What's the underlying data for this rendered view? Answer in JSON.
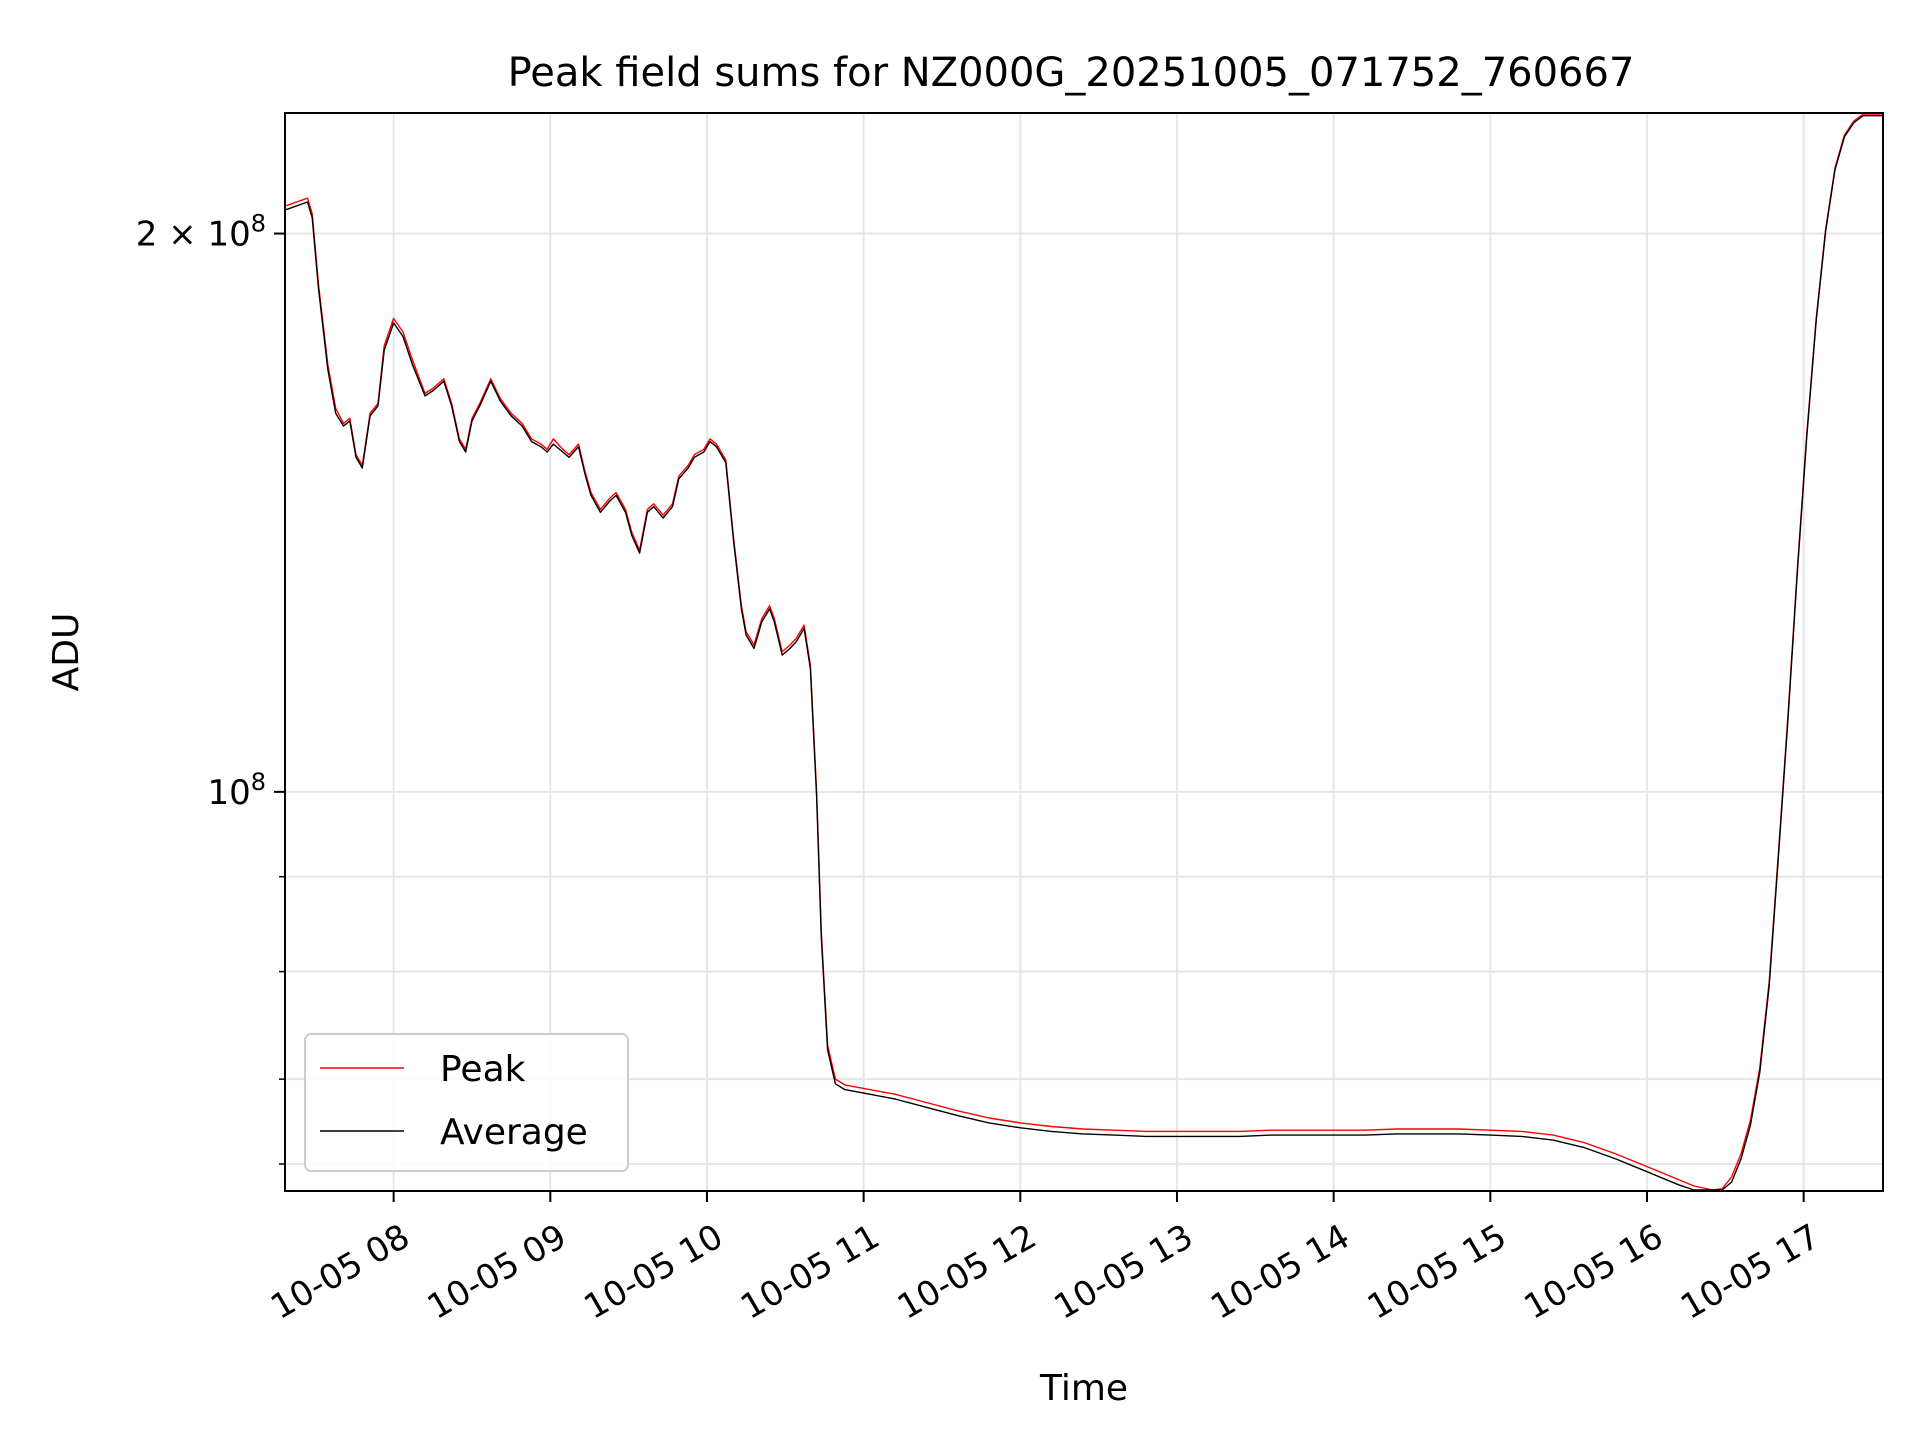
{
  "chart_data": {
    "type": "line",
    "title": "Peak field sums for NZ000G_20251005_071752_760667",
    "xlabel": "Time",
    "ylabel": "ADU",
    "yscale": "log",
    "grid": true,
    "legend_position": "lower-left",
    "xlim": [
      7.313,
      17.5
    ],
    "ylim": [
      61000000,
      232000000
    ],
    "x_ticks": [
      {
        "value": 8,
        "label": "10-05 08"
      },
      {
        "value": 9,
        "label": "10-05 09"
      },
      {
        "value": 10,
        "label": "10-05 10"
      },
      {
        "value": 11,
        "label": "10-05 11"
      },
      {
        "value": 12,
        "label": "10-05 12"
      },
      {
        "value": 13,
        "label": "10-05 13"
      },
      {
        "value": 14,
        "label": "10-05 14"
      },
      {
        "value": 15,
        "label": "10-05 15"
      },
      {
        "value": 16,
        "label": "10-05 16"
      },
      {
        "value": 17,
        "label": "10-05 17"
      }
    ],
    "y_major_ticks": [
      {
        "value": 100000000,
        "mantissa": "",
        "exponent": "8"
      },
      {
        "value": 200000000,
        "mantissa": "2",
        "exponent": "8"
      }
    ],
    "y_minor_ticks": [
      63000000,
      70000000,
      80000000,
      90000000
    ],
    "series": [
      {
        "name": "Peak",
        "color": "#ff0000",
        "x": [
          7.313,
          7.45,
          7.48,
          7.52,
          7.58,
          7.63,
          7.68,
          7.72,
          7.76,
          7.8,
          7.85,
          7.9,
          7.94,
          8.0,
          8.06,
          8.12,
          8.2,
          8.25,
          8.32,
          8.37,
          8.42,
          8.46,
          8.5,
          8.55,
          8.62,
          8.68,
          8.75,
          8.82,
          8.88,
          8.94,
          8.98,
          9.02,
          9.08,
          9.12,
          9.18,
          9.22,
          9.26,
          9.32,
          9.38,
          9.42,
          9.48,
          9.52,
          9.57,
          9.62,
          9.66,
          9.72,
          9.78,
          9.82,
          9.88,
          9.92,
          9.98,
          10.02,
          10.06,
          10.12,
          10.17,
          10.22,
          10.25,
          10.3,
          10.35,
          10.4,
          10.43,
          10.48,
          10.53,
          10.57,
          10.62,
          10.66,
          10.7,
          10.73,
          10.77,
          10.82,
          10.88,
          11.0,
          11.2,
          11.4,
          11.6,
          11.8,
          12.0,
          12.2,
          12.4,
          12.6,
          12.8,
          13.0,
          13.2,
          13.4,
          13.6,
          13.8,
          14.0,
          14.2,
          14.4,
          14.6,
          14.8,
          15.0,
          15.2,
          15.4,
          15.6,
          15.8,
          16.0,
          16.2,
          16.3,
          16.42,
          16.48,
          16.54,
          16.6,
          16.66,
          16.72,
          16.78,
          16.84,
          16.9,
          16.96,
          17.02,
          17.08,
          17.14,
          17.2,
          17.26,
          17.32,
          17.38,
          17.44,
          17.5
        ],
        "y": [
          207000000,
          209000000,
          205000000,
          188000000,
          170000000,
          161000000,
          158000000,
          159000000,
          152000000,
          150000000,
          160000000,
          162000000,
          174000000,
          180000000,
          177000000,
          171000000,
          164000000,
          165000000,
          167000000,
          162000000,
          155000000,
          153000000,
          159000000,
          162000000,
          167000000,
          163000000,
          160000000,
          158000000,
          155000000,
          154000000,
          153000000,
          155000000,
          153000000,
          152000000,
          154000000,
          149000000,
          145000000,
          142000000,
          144000000,
          145000000,
          142000000,
          138000000,
          135000000,
          142000000,
          143000000,
          141000000,
          143000000,
          148000000,
          150000000,
          152000000,
          153000000,
          155000000,
          154000000,
          151000000,
          137000000,
          126000000,
          122000000,
          120000000,
          124000000,
          126000000,
          124000000,
          119000000,
          120000000,
          121000000,
          123000000,
          117000000,
          100000000,
          84000000,
          73000000,
          70000000,
          69500000,
          69200000,
          68700000,
          68000000,
          67300000,
          66700000,
          66300000,
          66000000,
          65800000,
          65700000,
          65600000,
          65600000,
          65600000,
          65600000,
          65700000,
          65700000,
          65700000,
          65700000,
          65800000,
          65800000,
          65800000,
          65700000,
          65600000,
          65300000,
          64700000,
          63800000,
          62800000,
          61800000,
          61300000,
          61000000,
          61100000,
          62000000,
          63800000,
          66500000,
          71000000,
          79000000,
          93000000,
          110000000,
          132000000,
          156000000,
          180000000,
          201000000,
          217000000,
          226000000,
          230000000,
          232000000,
          232000000,
          232000000
        ]
      },
      {
        "name": "Average",
        "color": "#000000",
        "x": [
          7.313,
          7.45,
          7.48,
          7.52,
          7.58,
          7.63,
          7.68,
          7.72,
          7.76,
          7.8,
          7.85,
          7.9,
          7.94,
          8.0,
          8.06,
          8.12,
          8.2,
          8.25,
          8.32,
          8.37,
          8.42,
          8.46,
          8.5,
          8.55,
          8.62,
          8.68,
          8.75,
          8.82,
          8.88,
          8.94,
          8.98,
          9.02,
          9.08,
          9.12,
          9.18,
          9.22,
          9.26,
          9.32,
          9.38,
          9.42,
          9.48,
          9.52,
          9.57,
          9.62,
          9.66,
          9.72,
          9.78,
          9.82,
          9.88,
          9.92,
          9.98,
          10.02,
          10.06,
          10.12,
          10.17,
          10.22,
          10.25,
          10.3,
          10.35,
          10.4,
          10.43,
          10.48,
          10.53,
          10.57,
          10.62,
          10.66,
          10.7,
          10.73,
          10.77,
          10.82,
          10.88,
          11.0,
          11.2,
          11.4,
          11.6,
          11.8,
          12.0,
          12.2,
          12.4,
          12.6,
          12.8,
          13.0,
          13.2,
          13.4,
          13.6,
          13.8,
          14.0,
          14.2,
          14.4,
          14.6,
          14.8,
          15.0,
          15.2,
          15.4,
          15.6,
          15.8,
          16.0,
          16.2,
          16.3,
          16.42,
          16.48,
          16.54,
          16.6,
          16.66,
          16.72,
          16.78,
          16.84,
          16.9,
          16.96,
          17.02,
          17.08,
          17.14,
          17.2,
          17.26,
          17.32,
          17.38,
          17.44,
          17.5
        ],
        "y": [
          206000000,
          208000000,
          204000000,
          187000000,
          169000000,
          160000000,
          157500000,
          158500000,
          151500000,
          149500000,
          159500000,
          161500000,
          173000000,
          179000000,
          176000000,
          170000000,
          163500000,
          164500000,
          166500000,
          161500000,
          154500000,
          152500000,
          158500000,
          161500000,
          166500000,
          162500000,
          159500000,
          157500000,
          154500000,
          153500000,
          152500000,
          154000000,
          152500000,
          151500000,
          153500000,
          148500000,
          144500000,
          141500000,
          143500000,
          144500000,
          141500000,
          137500000,
          134500000,
          141500000,
          142500000,
          140500000,
          142500000,
          147500000,
          149500000,
          151500000,
          152500000,
          154500000,
          153500000,
          150500000,
          136500000,
          125500000,
          121500000,
          119500000,
          123500000,
          125500000,
          123500000,
          118500000,
          119500000,
          120500000,
          122500000,
          116500000,
          99500000,
          83500000,
          72600000,
          69600000,
          69100000,
          68800000,
          68300000,
          67600000,
          66900000,
          66300000,
          65900000,
          65600000,
          65400000,
          65300000,
          65200000,
          65200000,
          65200000,
          65200000,
          65300000,
          65300000,
          65300000,
          65300000,
          65400000,
          65400000,
          65400000,
          65300000,
          65200000,
          64900000,
          64300000,
          63400000,
          62400000,
          61400000,
          60900000,
          60600000,
          60700000,
          61600000,
          63400000,
          66100000,
          70600000,
          78600000,
          92600000,
          109500000,
          131500000,
          155500000,
          179500000,
          200500000,
          216500000,
          225500000,
          229500000,
          231500000,
          231500000,
          231500000
        ]
      }
    ]
  }
}
